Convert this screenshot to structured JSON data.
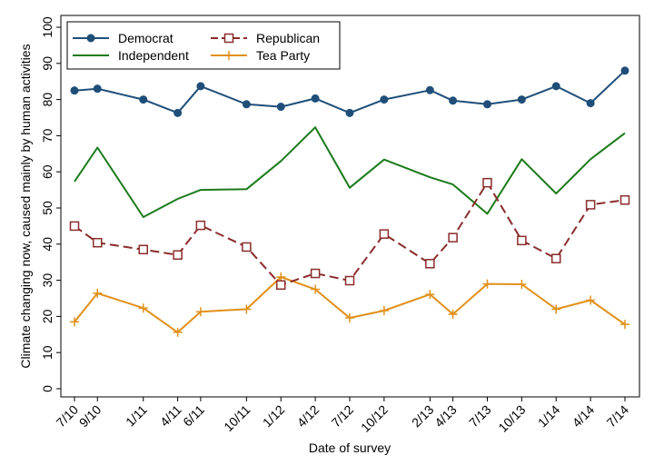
{
  "chart_data": {
    "type": "line",
    "title": "",
    "xlabel": "Date of survey",
    "ylabel": "Climate changing now, caused mainly by human activities",
    "ylim": [
      0,
      100
    ],
    "yticks": [
      "0",
      "10",
      "20",
      "30",
      "40",
      "50",
      "60",
      "70",
      "80",
      "90",
      "100"
    ],
    "xlim": [
      0,
      48
    ],
    "x_date_axis": true,
    "x": [
      "7/10",
      "9/10",
      "1/11",
      "4/11",
      "6/11",
      "10/11",
      "1/12",
      "4/12",
      "7/12",
      "10/12",
      "2/13",
      "4/13",
      "7/13",
      "10/13",
      "1/14",
      "4/14",
      "7/14"
    ],
    "grid": false,
    "legend": "top-left",
    "series": [
      {
        "name": "Democrat",
        "color": "#1f4e79",
        "marker": "circle",
        "dash": "solid",
        "values": [
          82.5,
          83,
          80,
          76.3,
          83.7,
          78.7,
          78,
          80.3,
          76.3,
          80,
          82.6,
          79.7,
          78.7,
          80,
          83.7,
          79,
          88
        ]
      },
      {
        "name": "Republican",
        "color": "#8b2c2c",
        "marker": "square",
        "dash": "dashed",
        "values": [
          45,
          40.4,
          38.5,
          37,
          45.2,
          39.2,
          28.7,
          31.9,
          29.9,
          42.8,
          34.6,
          41.8,
          57,
          41,
          36,
          50.9,
          52.2
        ]
      },
      {
        "name": "Independent",
        "color": "#1a7a1a",
        "marker": "none",
        "dash": "solid",
        "values": [
          57.3,
          66.7,
          47.5,
          52.5,
          55,
          55.2,
          63,
          72.3,
          55.6,
          63.4,
          58.5,
          56.5,
          48.4,
          63.5,
          54,
          63.5,
          70.7
        ]
      },
      {
        "name": "Tea Party",
        "color": "#e0901a",
        "marker": "plus",
        "dash": "solid",
        "values": [
          18.5,
          26.4,
          22.3,
          15.6,
          21.3,
          22,
          30.9,
          27.5,
          19.6,
          21.6,
          26.1,
          20.6,
          29,
          28.9,
          22,
          24.5,
          17.8
        ]
      }
    ]
  }
}
